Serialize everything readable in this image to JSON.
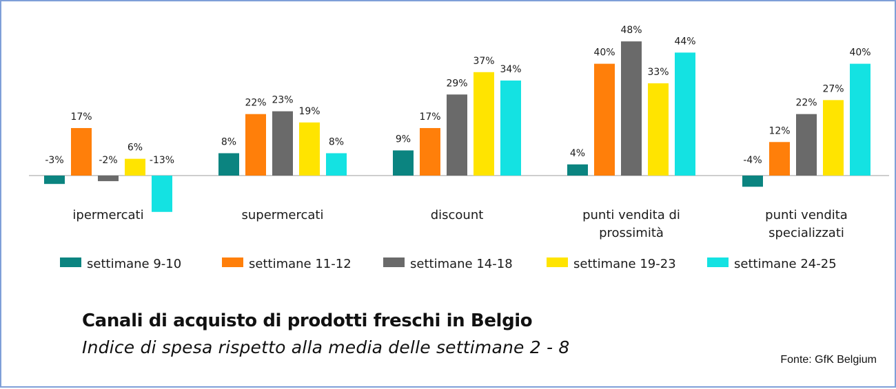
{
  "chart_data": {
    "type": "bar",
    "title": "Canali di acquisto di prodotti freschi in Belgio",
    "subtitle": "Indice di spesa rispetto alla media delle settimane 2 - 8",
    "source": "Fonte: GfK Belgium",
    "categories": [
      [
        "ipermercati"
      ],
      [
        "supermercati"
      ],
      [
        "discount"
      ],
      [
        "punti vendita di",
        "prossimità"
      ],
      [
        "punti vendita",
        "specializzati"
      ]
    ],
    "series": [
      {
        "name": "settimane 9-10",
        "color": "#0b8480",
        "values": [
          -3,
          8,
          9,
          4,
          -4
        ],
        "labels": [
          "-3%",
          "8%",
          "9%",
          "4%",
          "-4%"
        ]
      },
      {
        "name": "settimane 11-12",
        "color": "#ff7f0a",
        "values": [
          17,
          22,
          17,
          40,
          12
        ],
        "labels": [
          "17%",
          "22%",
          "17%",
          "40%",
          "12%"
        ]
      },
      {
        "name": "settimane 14-18",
        "color": "#6a6a6a",
        "values": [
          -2,
          23,
          29,
          48,
          22
        ],
        "labels": [
          "-2%",
          "23%",
          "29%",
          "48%",
          "22%"
        ]
      },
      {
        "name": "settimane 19-23",
        "color": "#ffe400",
        "values": [
          6,
          19,
          37,
          33,
          27
        ],
        "labels": [
          "6%",
          "19%",
          "37%",
          "33%",
          "27%"
        ]
      },
      {
        "name": "settimane 24-25",
        "color": "#14e2e2",
        "values": [
          -13,
          8,
          34,
          44,
          40
        ],
        "labels": [
          "-13%",
          "8%",
          "34%",
          "44%",
          "40%"
        ]
      }
    ],
    "xlabel": "",
    "ylabel": "",
    "ylim": [
      -13,
      48
    ],
    "grid": false,
    "legend": "bottom"
  }
}
